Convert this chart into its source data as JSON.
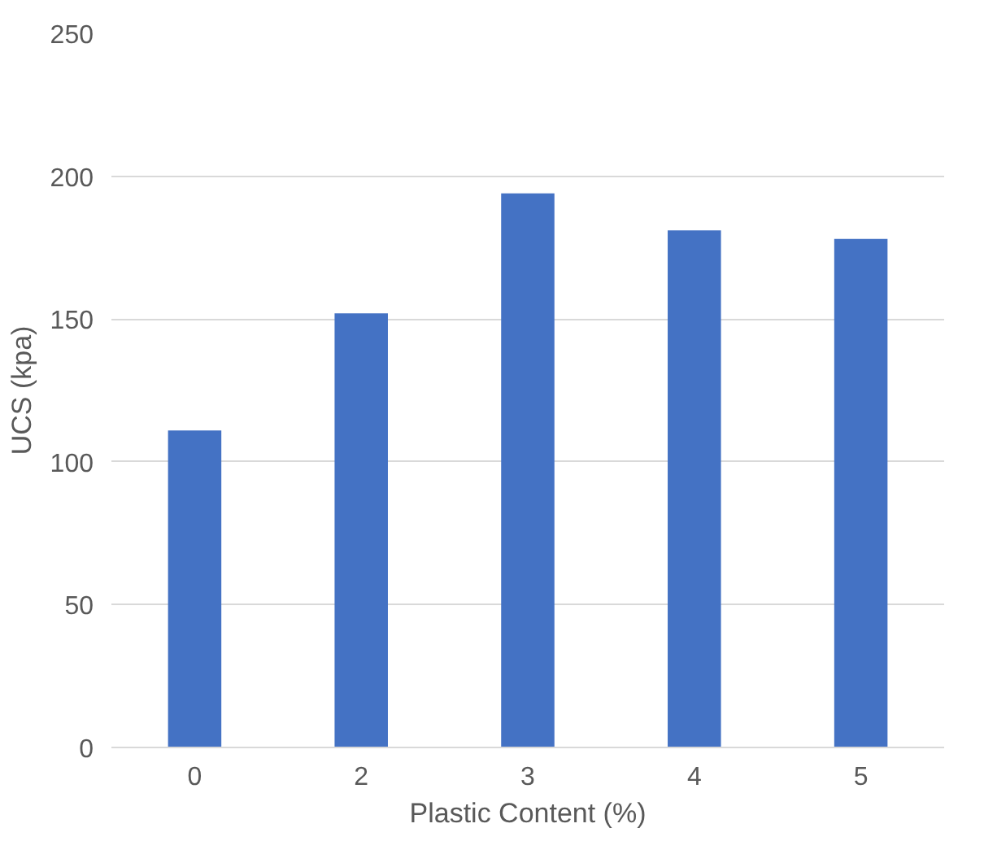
{
  "chart_data": {
    "type": "bar",
    "xlabel": "Plastic Content (%)",
    "ylabel": "UCS (kpa)",
    "categories": [
      "0",
      "2",
      "3",
      "4",
      "5"
    ],
    "values": [
      111,
      152,
      194,
      181,
      178
    ],
    "color": "#4472c4",
    "ylim": [
      0,
      250
    ],
    "yticks": [
      0,
      50,
      100,
      150,
      200,
      250
    ],
    "grid": "y"
  }
}
